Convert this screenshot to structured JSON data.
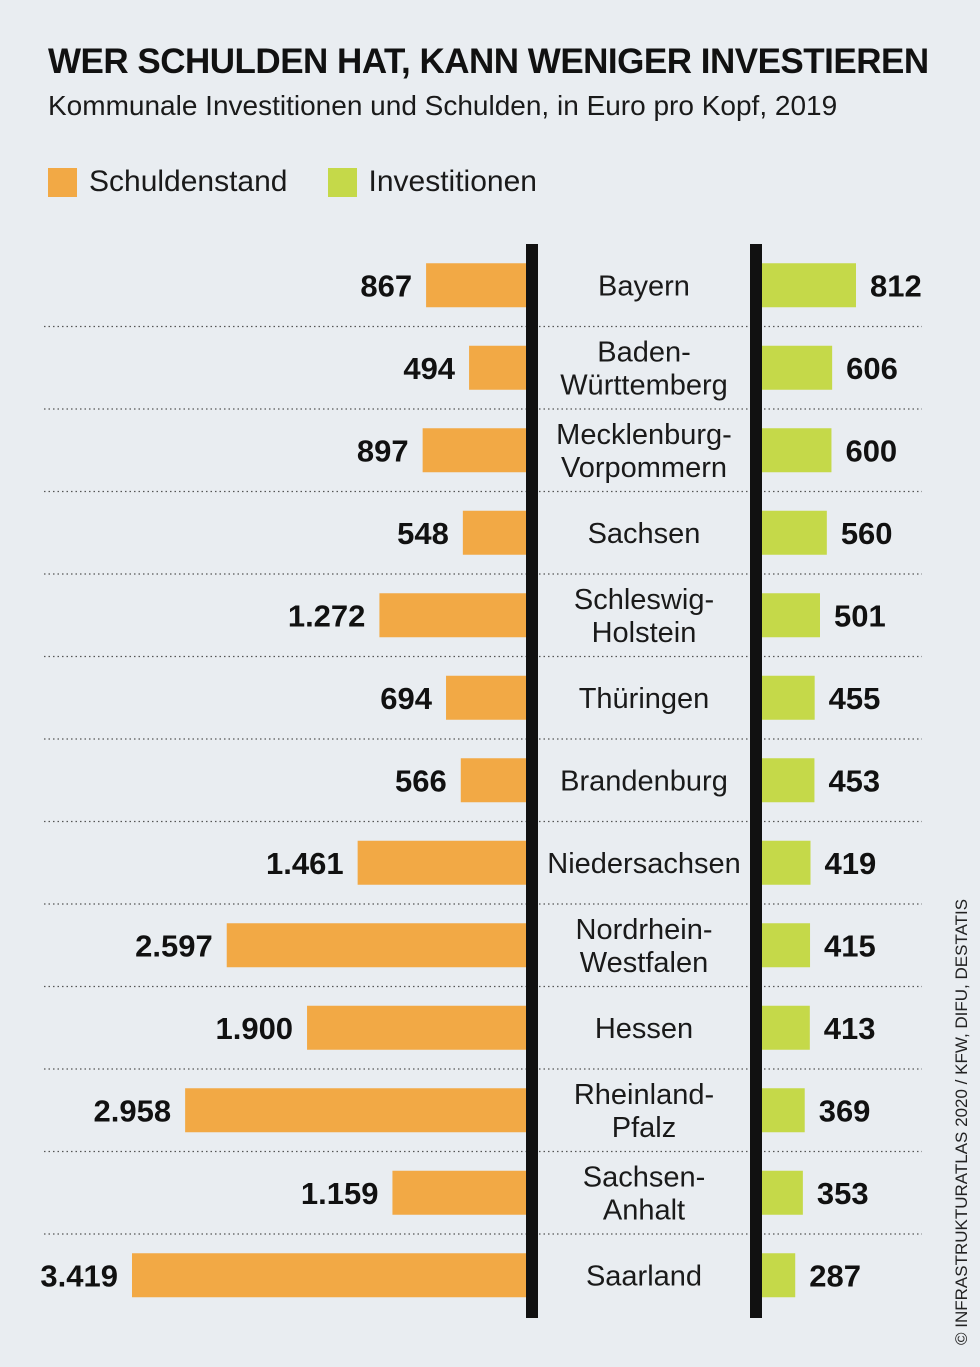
{
  "title": "WER SCHULDEN HAT, KANN WENIGER INVESTIEREN",
  "subtitle": "Kommunale Investitionen und Schulden, in Euro pro Kopf, 2019",
  "credit": "© INFRASTRUKTURATLAS 2020 / KFW, DIFU, DESTATIS",
  "colors": {
    "debt": "#f2a945",
    "investment": "#c5d949",
    "axis": "#111111",
    "background": "#e9edf1"
  },
  "chart_data": {
    "type": "bar",
    "orientation": "horizontal-butterfly",
    "categories": [
      "Bayern",
      "Baden-\nWürttemberg",
      "Mecklenburg-\nVorpommern",
      "Sachsen",
      "Schleswig-\nHolstein",
      "Thüringen",
      "Brandenburg",
      "Niedersachsen",
      "Nordrhein-\nWestfalen",
      "Hessen",
      "Rheinland-\nPfalz",
      "Sachsen-\nAnhalt",
      "Saarland"
    ],
    "series": [
      {
        "name": "Schuldenstand",
        "values": [
          867,
          494,
          897,
          548,
          1272,
          694,
          566,
          1461,
          2597,
          1900,
          2958,
          1159,
          3419
        ],
        "labels": [
          "867",
          "494",
          "897",
          "548",
          "1.272",
          "694",
          "566",
          "1.461",
          "2.597",
          "1.900",
          "2.958",
          "1.159",
          "3.419"
        ]
      },
      {
        "name": "Investitionen",
        "values": [
          812,
          606,
          600,
          560,
          501,
          455,
          453,
          419,
          415,
          413,
          369,
          353,
          287
        ],
        "labels": [
          "812",
          "606",
          "600",
          "560",
          "501",
          "455",
          "453",
          "419",
          "415",
          "413",
          "369",
          "353",
          "287"
        ]
      }
    ],
    "legend": "top-left"
  }
}
